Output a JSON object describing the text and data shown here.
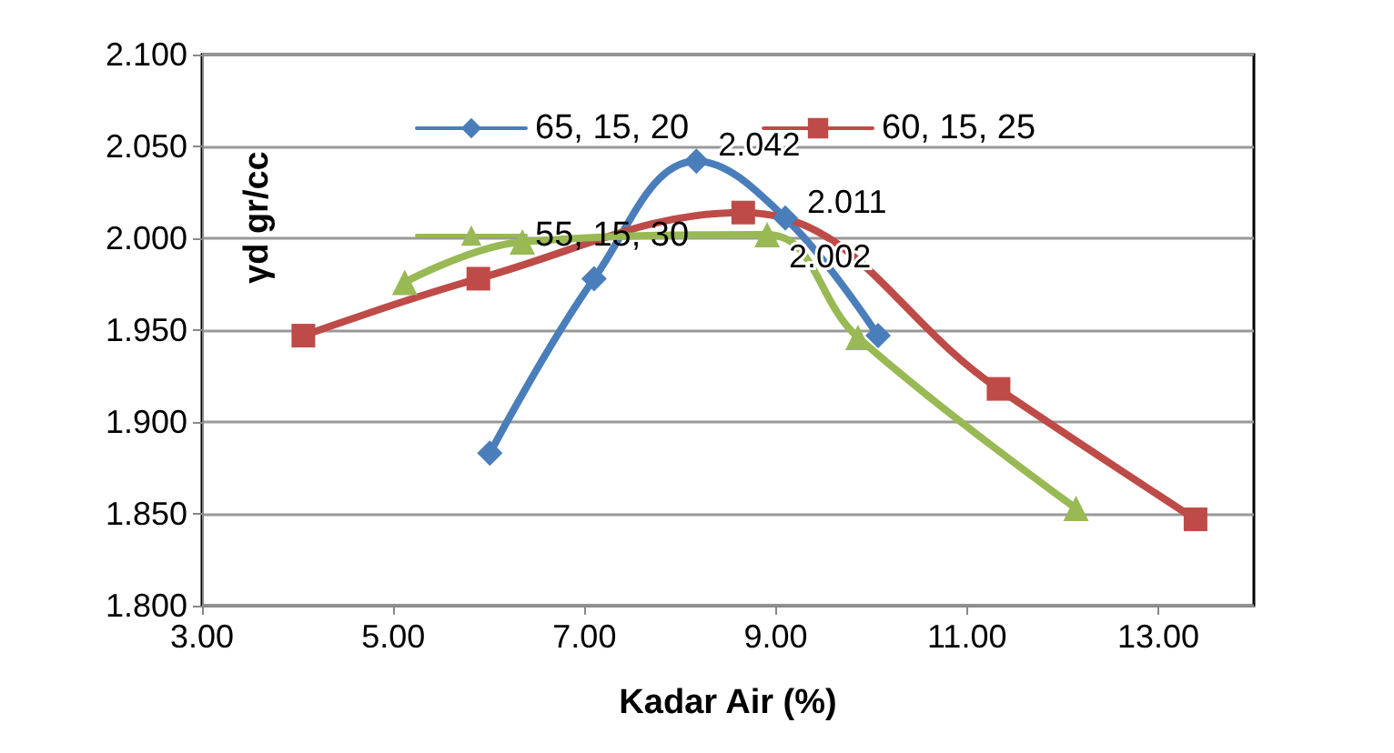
{
  "chart_data": {
    "type": "line",
    "xlabel": "Kadar Air (%)",
    "ylabel": "γd gr/cc",
    "xlim": [
      3,
      14
    ],
    "xticks": [
      {
        "value": 3,
        "label": "3.00"
      },
      {
        "value": 5,
        "label": "5.00"
      },
      {
        "value": 7,
        "label": "7.00"
      },
      {
        "value": 9,
        "label": "9.00"
      },
      {
        "value": 11,
        "label": "11.00"
      },
      {
        "value": 13,
        "label": "13.00"
      }
    ],
    "ylim": [
      1.8,
      2.1
    ],
    "yticks": [
      {
        "value": 1.8,
        "label": "1.800"
      },
      {
        "value": 1.85,
        "label": "1.850"
      },
      {
        "value": 1.9,
        "label": "1.900"
      },
      {
        "value": 1.95,
        "label": "1.950"
      },
      {
        "value": 2.0,
        "label": "2.000"
      },
      {
        "value": 2.05,
        "label": "2.050"
      },
      {
        "value": 2.1,
        "label": "2.100"
      }
    ],
    "grid": "y",
    "legend": "top",
    "line_style": "solid",
    "series": [
      {
        "name": "65, 15, 20",
        "color": "#4a7ebb",
        "marker": "diamond",
        "x": [
          6.01,
          7.1,
          8.17,
          9.1,
          10.07
        ],
        "values": [
          1.883,
          1.978,
          2.042,
          2.011,
          1.947
        ],
        "value_labels": [
          null,
          null,
          "2.042",
          "2.011",
          null
        ]
      },
      {
        "name": "60, 15, 25",
        "color": "#be4b48",
        "marker": "square",
        "x": [
          4.06,
          5.89,
          8.66,
          11.33,
          13.39
        ],
        "values": [
          1.947,
          1.978,
          2.014,
          1.918,
          1.847
        ]
      },
      {
        "name": "55, 15, 30",
        "color": "#98b954",
        "marker": "triangle",
        "x": [
          5.12,
          6.35,
          8.91,
          9.86,
          12.14
        ],
        "values": [
          1.976,
          1.998,
          2.002,
          1.946,
          1.853
        ],
        "value_labels": [
          null,
          null,
          "2.002",
          null,
          null
        ]
      }
    ]
  }
}
